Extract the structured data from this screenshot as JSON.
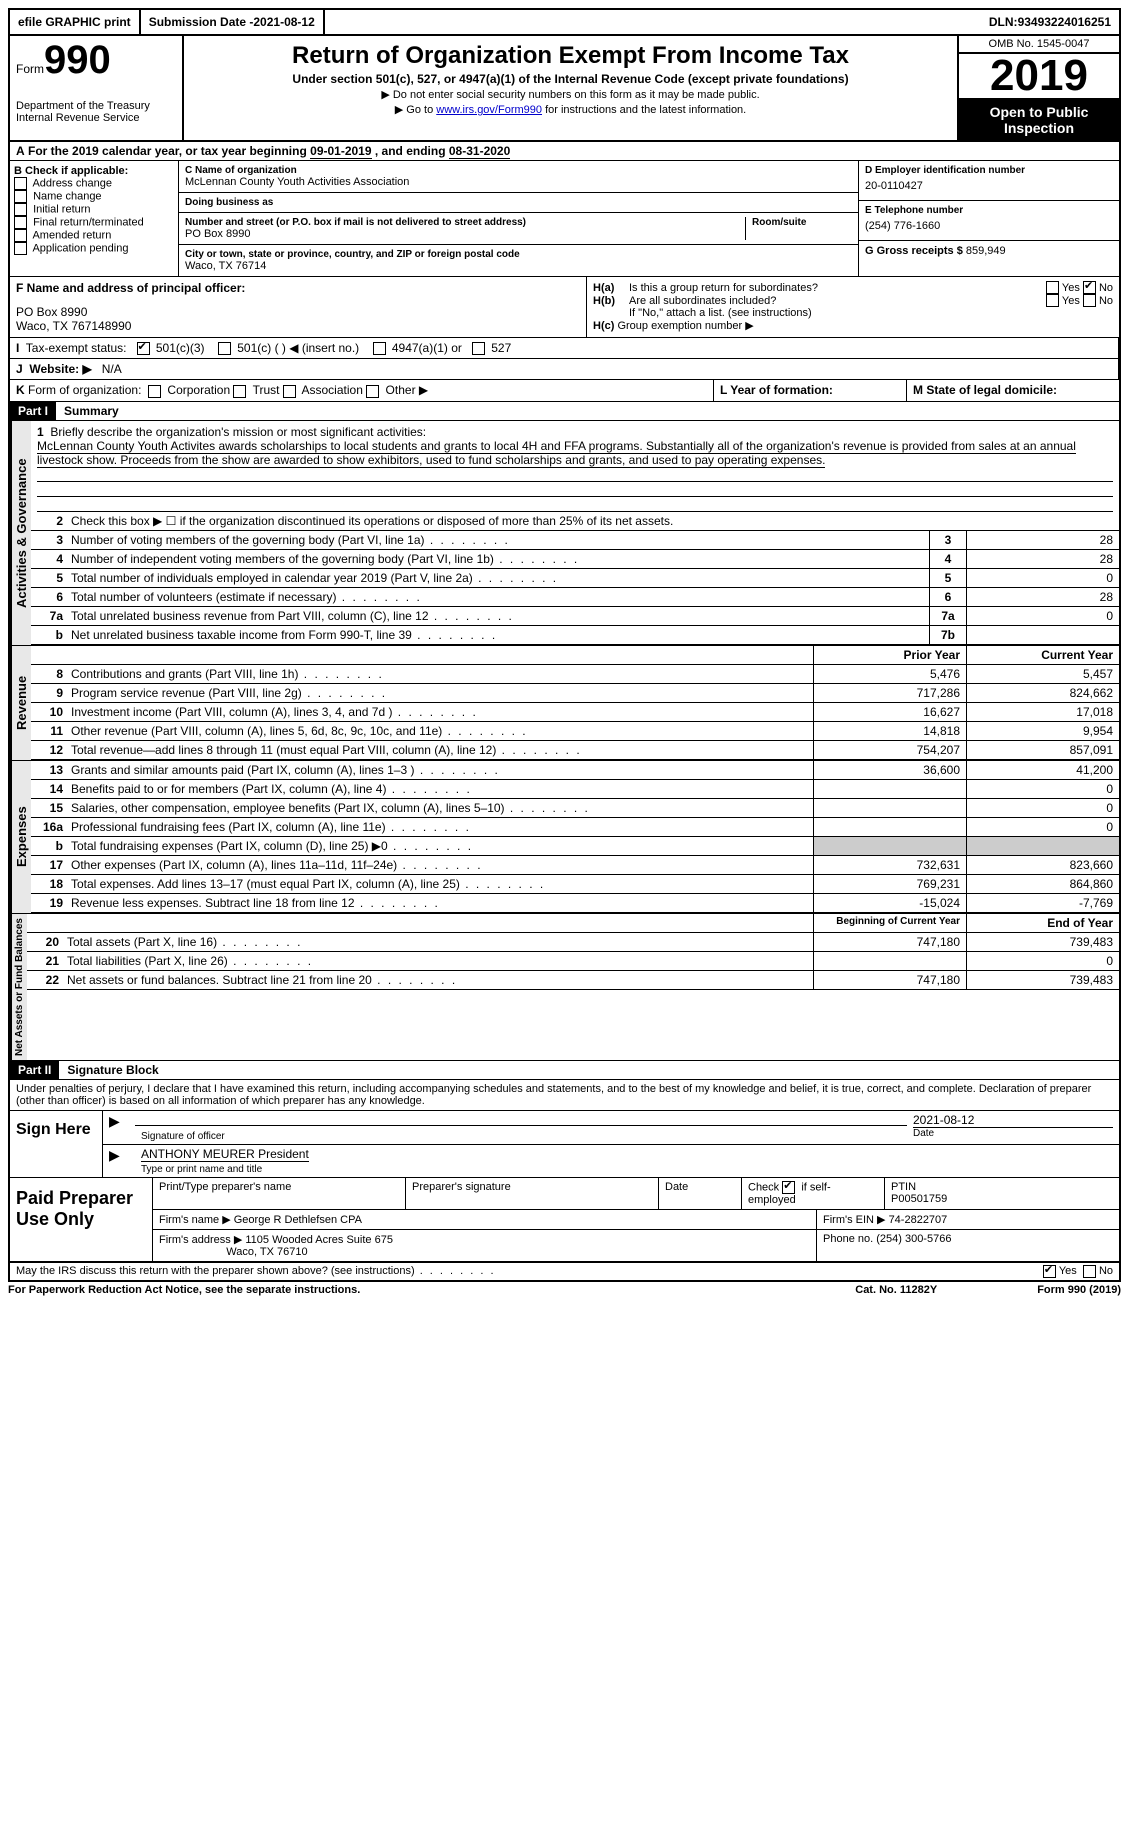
{
  "topbar": {
    "efile": "efile GRAPHIC print",
    "submission_label": "Submission Date - ",
    "submission_date": "2021-08-12",
    "dln_label": "DLN: ",
    "dln": "93493224016251"
  },
  "header": {
    "form_label": "Form",
    "form_number": "990",
    "dept": "Department of the Treasury\nInternal Revenue Service",
    "title": "Return of Organization Exempt From Income Tax",
    "subtitle": "Under section 501(c), 527, or 4947(a)(1) of the Internal Revenue Code (except private foundations)",
    "note1": "▶ Do not enter social security numbers on this form as it may be made public.",
    "note2_pre": "▶ Go to ",
    "note2_link": "www.irs.gov/Form990",
    "note2_post": " for instructions and the latest information.",
    "omb": "OMB No. 1545-0047",
    "year": "2019",
    "open_public": "Open to Public Inspection"
  },
  "line_a": {
    "prefix": "A",
    "text": "For the 2019 calendar year, or tax year beginning ",
    "begin": "09-01-2019",
    "mid": " , and ending ",
    "end": "08-31-2020"
  },
  "section_b": {
    "b_label": "B Check if applicable:",
    "b_items": [
      "Address change",
      "Name change",
      "Initial return",
      "Final return/terminated",
      "Amended return",
      "Application pending"
    ],
    "c_name_label": "C Name of organization",
    "c_name": "McLennan County Youth Activities Association",
    "dba_label": "Doing business as",
    "dba": "",
    "addr_label": "Number and street (or P.O. box if mail is not delivered to street address)",
    "room_label": "Room/suite",
    "addr": "PO Box 8990",
    "city_label": "City or town, state or province, country, and ZIP or foreign postal code",
    "city": "Waco, TX  76714",
    "d_label": "D Employer identification number",
    "d_val": "20-0110427",
    "e_label": "E Telephone number",
    "e_val": "(254) 776-1660",
    "g_label": "G Gross receipts $ ",
    "g_val": "859,949"
  },
  "section_f": {
    "f_label": "F Name and address of principal officer:",
    "f_addr1": "PO Box 8990",
    "f_addr2": "Waco, TX  767148990",
    "ha_label": "H(a)",
    "ha_text": "Is this a group return for subordinates?",
    "ha_yes": "Yes",
    "ha_no": "No",
    "hb_label": "H(b)",
    "hb_text": "Are all subordinates included?",
    "hb_note": "If \"No,\" attach a list. (see instructions)",
    "hc_label": "H(c)",
    "hc_text": "Group exemption number ▶"
  },
  "row_i": {
    "i_label": "I",
    "i_text": "Tax-exempt status:",
    "i_501c3": "501(c)(3)",
    "i_501c": "501(c) (  ) ◀ (insert no.)",
    "i_4947": "4947(a)(1) or",
    "i_527": "527"
  },
  "row_j": {
    "j_label": "J",
    "j_text": "Website: ▶",
    "j_val": "N/A"
  },
  "row_k": {
    "k_label": "K",
    "k_text": "Form of organization:",
    "k_items": [
      "Corporation",
      "Trust",
      "Association",
      "Other ▶"
    ],
    "l_label": "L Year of formation:",
    "m_label": "M State of legal domicile:"
  },
  "part1": {
    "header": "Part I",
    "title": "Summary",
    "vert1": "Activities & Governance",
    "mission_label": "1",
    "mission_intro": "Briefly describe the organization's mission or most significant activities:",
    "mission_text": "McLennan County Youth Activites awards scholarships to local students and grants to local 4H and FFA programs. Substantially all of the organization's revenue is provided from sales at an annual livestock show. Proceeds from the show are awarded to show exhibitors, used to fund scholarships and grants, and used to pay operating expenses.",
    "line2": {
      "num": "2",
      "desc": "Check this box ▶ ☐  if the organization discontinued its operations or disposed of more than 25% of its net assets."
    },
    "lines_gov": [
      {
        "num": "3",
        "desc": "Number of voting members of the governing body (Part VI, line 1a)",
        "box": "3",
        "val": "28"
      },
      {
        "num": "4",
        "desc": "Number of independent voting members of the governing body (Part VI, line 1b)",
        "box": "4",
        "val": "28"
      },
      {
        "num": "5",
        "desc": "Total number of individuals employed in calendar year 2019 (Part V, line 2a)",
        "box": "5",
        "val": "0"
      },
      {
        "num": "6",
        "desc": "Total number of volunteers (estimate if necessary)",
        "box": "6",
        "val": "28"
      },
      {
        "num": "7a",
        "desc": "Total unrelated business revenue from Part VIII, column (C), line 12",
        "box": "7a",
        "val": "0"
      },
      {
        "num": "b",
        "desc": "Net unrelated business taxable income from Form 990-T, line 39",
        "box": "7b",
        "val": ""
      }
    ],
    "vert2": "Revenue",
    "col_prior": "Prior Year",
    "col_current": "Current Year",
    "lines_rev": [
      {
        "num": "8",
        "desc": "Contributions and grants (Part VIII, line 1h)",
        "prior": "5,476",
        "curr": "5,457"
      },
      {
        "num": "9",
        "desc": "Program service revenue (Part VIII, line 2g)",
        "prior": "717,286",
        "curr": "824,662"
      },
      {
        "num": "10",
        "desc": "Investment income (Part VIII, column (A), lines 3, 4, and 7d )",
        "prior": "16,627",
        "curr": "17,018"
      },
      {
        "num": "11",
        "desc": "Other revenue (Part VIII, column (A), lines 5, 6d, 8c, 9c, 10c, and 11e)",
        "prior": "14,818",
        "curr": "9,954"
      },
      {
        "num": "12",
        "desc": "Total revenue—add lines 8 through 11 (must equal Part VIII, column (A), line 12)",
        "prior": "754,207",
        "curr": "857,091"
      }
    ],
    "vert3": "Expenses",
    "lines_exp": [
      {
        "num": "13",
        "desc": "Grants and similar amounts paid (Part IX, column (A), lines 1–3 )",
        "prior": "36,600",
        "curr": "41,200"
      },
      {
        "num": "14",
        "desc": "Benefits paid to or for members (Part IX, column (A), line 4)",
        "prior": "",
        "curr": "0"
      },
      {
        "num": "15",
        "desc": "Salaries, other compensation, employee benefits (Part IX, column (A), lines 5–10)",
        "prior": "",
        "curr": "0"
      },
      {
        "num": "16a",
        "desc": "Professional fundraising fees (Part IX, column (A), line 11e)",
        "prior": "",
        "curr": "0"
      },
      {
        "num": "b",
        "desc": "Total fundraising expenses (Part IX, column (D), line 25) ▶0",
        "prior": "SHADE",
        "curr": "SHADE"
      },
      {
        "num": "17",
        "desc": "Other expenses (Part IX, column (A), lines 11a–11d, 11f–24e)",
        "prior": "732,631",
        "curr": "823,660"
      },
      {
        "num": "18",
        "desc": "Total expenses. Add lines 13–17 (must equal Part IX, column (A), line 25)",
        "prior": "769,231",
        "curr": "864,860"
      },
      {
        "num": "19",
        "desc": "Revenue less expenses. Subtract line 18 from line 12",
        "prior": "-15,024",
        "curr": "-7,769"
      }
    ],
    "vert4": "Net Assets or Fund Balances",
    "col_begin": "Beginning of Current Year",
    "col_end": "End of Year",
    "lines_net": [
      {
        "num": "20",
        "desc": "Total assets (Part X, line 16)",
        "prior": "747,180",
        "curr": "739,483"
      },
      {
        "num": "21",
        "desc": "Total liabilities (Part X, line 26)",
        "prior": "",
        "curr": "0"
      },
      {
        "num": "22",
        "desc": "Net assets or fund balances. Subtract line 21 from line 20",
        "prior": "747,180",
        "curr": "739,483"
      }
    ]
  },
  "part2": {
    "header": "Part II",
    "title": "Signature Block",
    "declaration": "Under penalties of perjury, I declare that I have examined this return, including accompanying schedules and statements, and to the best of my knowledge and belief, it is true, correct, and complete. Declaration of preparer (other than officer) is based on all information of which preparer has any knowledge.",
    "sign_here": "Sign Here",
    "sig_officer_label": "Signature of officer",
    "sig_date": "2021-08-12",
    "date_label": "Date",
    "officer_name": "ANTHONY MEURER President",
    "name_title_label": "Type or print name and title"
  },
  "paid": {
    "label": "Paid Preparer Use Only",
    "h1": "Print/Type preparer's name",
    "h2": "Preparer's signature",
    "h3": "Date",
    "h4_pre": "Check",
    "h4_post": "if self-employed",
    "h5": "PTIN",
    "ptin": "P00501759",
    "firm_name_label": "Firm's name    ▶",
    "firm_name": "George R Dethlefsen CPA",
    "firm_ein_label": "Firm's EIN ▶",
    "firm_ein": "74-2822707",
    "firm_addr_label": "Firm's address ▶",
    "firm_addr1": "1105 Wooded Acres Suite 675",
    "firm_addr2": "Waco, TX  76710",
    "phone_label": "Phone no.",
    "phone": "(254) 300-5766"
  },
  "footer": {
    "discuss": "May the IRS discuss this return with the preparer shown above? (see instructions)",
    "yes": "Yes",
    "no": "No",
    "paperwork": "For Paperwork Reduction Act Notice, see the separate instructions.",
    "cat": "Cat. No. 11282Y",
    "form": "Form 990 (2019)"
  }
}
